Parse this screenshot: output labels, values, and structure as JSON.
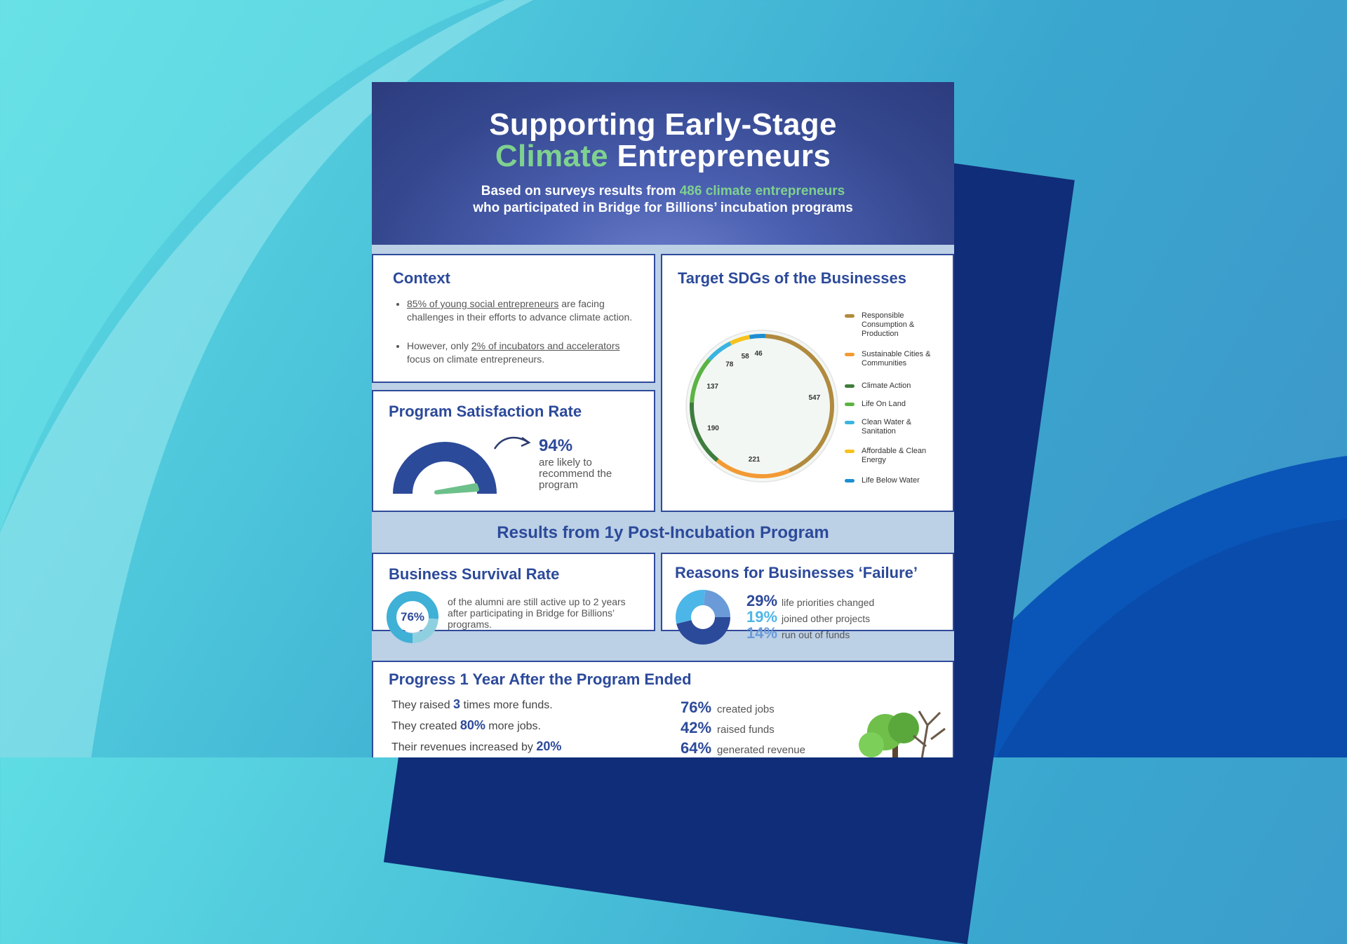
{
  "poster": {
    "title_line1": "Supporting Early-Stage",
    "title_line2_green": "Climate",
    "title_line2_rest": " Entrepreneurs",
    "subtitle_pre": "Based on surveys results from ",
    "subtitle_green": "486 climate entrepreneurs",
    "subtitle_line2": "who participated in Bridge for Billions’ incubation programs"
  },
  "context": {
    "title": "Context",
    "bullet1_link": "85% of young social entrepreneurs",
    "bullet1_rest": " are facing challenges in their efforts to advance climate action.",
    "bullet2_pre": "However, only ",
    "bullet2_link": "2% of incubators and accelerators",
    "bullet2_rest": " focus on climate entrepreneurs."
  },
  "satisfaction": {
    "title": "Program Satisfaction Rate",
    "value": "94%",
    "caption": "are likely to recommend the program",
    "colors": {
      "gauge": "#2c4a9a",
      "needle": "#6cc08a"
    }
  },
  "sdg": {
    "title": "Target SDGs of the Businesses",
    "legend": [
      {
        "label": "Responsible Consumption & Production",
        "color": "#b08a3e"
      },
      {
        "label": "Sustainable Cities & Communities",
        "color": "#f39a34"
      },
      {
        "label": "Climate Action",
        "color": "#3f7d3e"
      },
      {
        "label": "Life On Land",
        "color": "#5bb344"
      },
      {
        "label": "Clean Water & Sanitation",
        "color": "#3bb3e0"
      },
      {
        "label": "Affordable & Clean Energy",
        "color": "#f7c21d"
      },
      {
        "label": "Life Below Water",
        "color": "#1f8ed1"
      }
    ]
  },
  "chart_data": {
    "type": "pie",
    "categories": [
      "Responsible Consumption & Production",
      "Sustainable Cities & Communities",
      "Climate Action",
      "Life On Land",
      "Clean Water & Sanitation",
      "Affordable & Clean Energy",
      "Life Below Water"
    ],
    "values": [
      547,
      221,
      190,
      137,
      78,
      58,
      46
    ],
    "title": "Target SDGs of the Businesses"
  },
  "results": {
    "band_title": "Results from 1y Post-Incubation Program"
  },
  "survival": {
    "title": "Business Survival Rate",
    "value": "76%",
    "percent": 76,
    "caption": "of the alumni are still active up to 2 years after participating in Bridge for Billions’ programs."
  },
  "failure": {
    "title": "Reasons for Businesses ‘Failure’",
    "items": [
      {
        "pct": "29%",
        "text": "life priorities changed",
        "color": "#2c4a9a"
      },
      {
        "pct": "19%",
        "text": "joined other projects",
        "color": "#4db6e8"
      },
      {
        "pct": "14%",
        "text": "run out of funds",
        "color": "#6a9bd8"
      }
    ]
  },
  "progress": {
    "title": "Progress 1 Year After the Program Ended",
    "left": [
      {
        "pre": "They raised ",
        "bold": "3",
        "post": " times more funds."
      },
      {
        "pre": "They created ",
        "bold": "80%",
        "post": " more jobs."
      },
      {
        "pre": "Their revenues increased by ",
        "bold": "20%",
        "post": ""
      }
    ],
    "right": [
      {
        "pct": "76%",
        "text": "created jobs"
      },
      {
        "pct": "42%",
        "text": "raised funds"
      },
      {
        "pct": "64%",
        "text": "generated revenue"
      }
    ]
  }
}
